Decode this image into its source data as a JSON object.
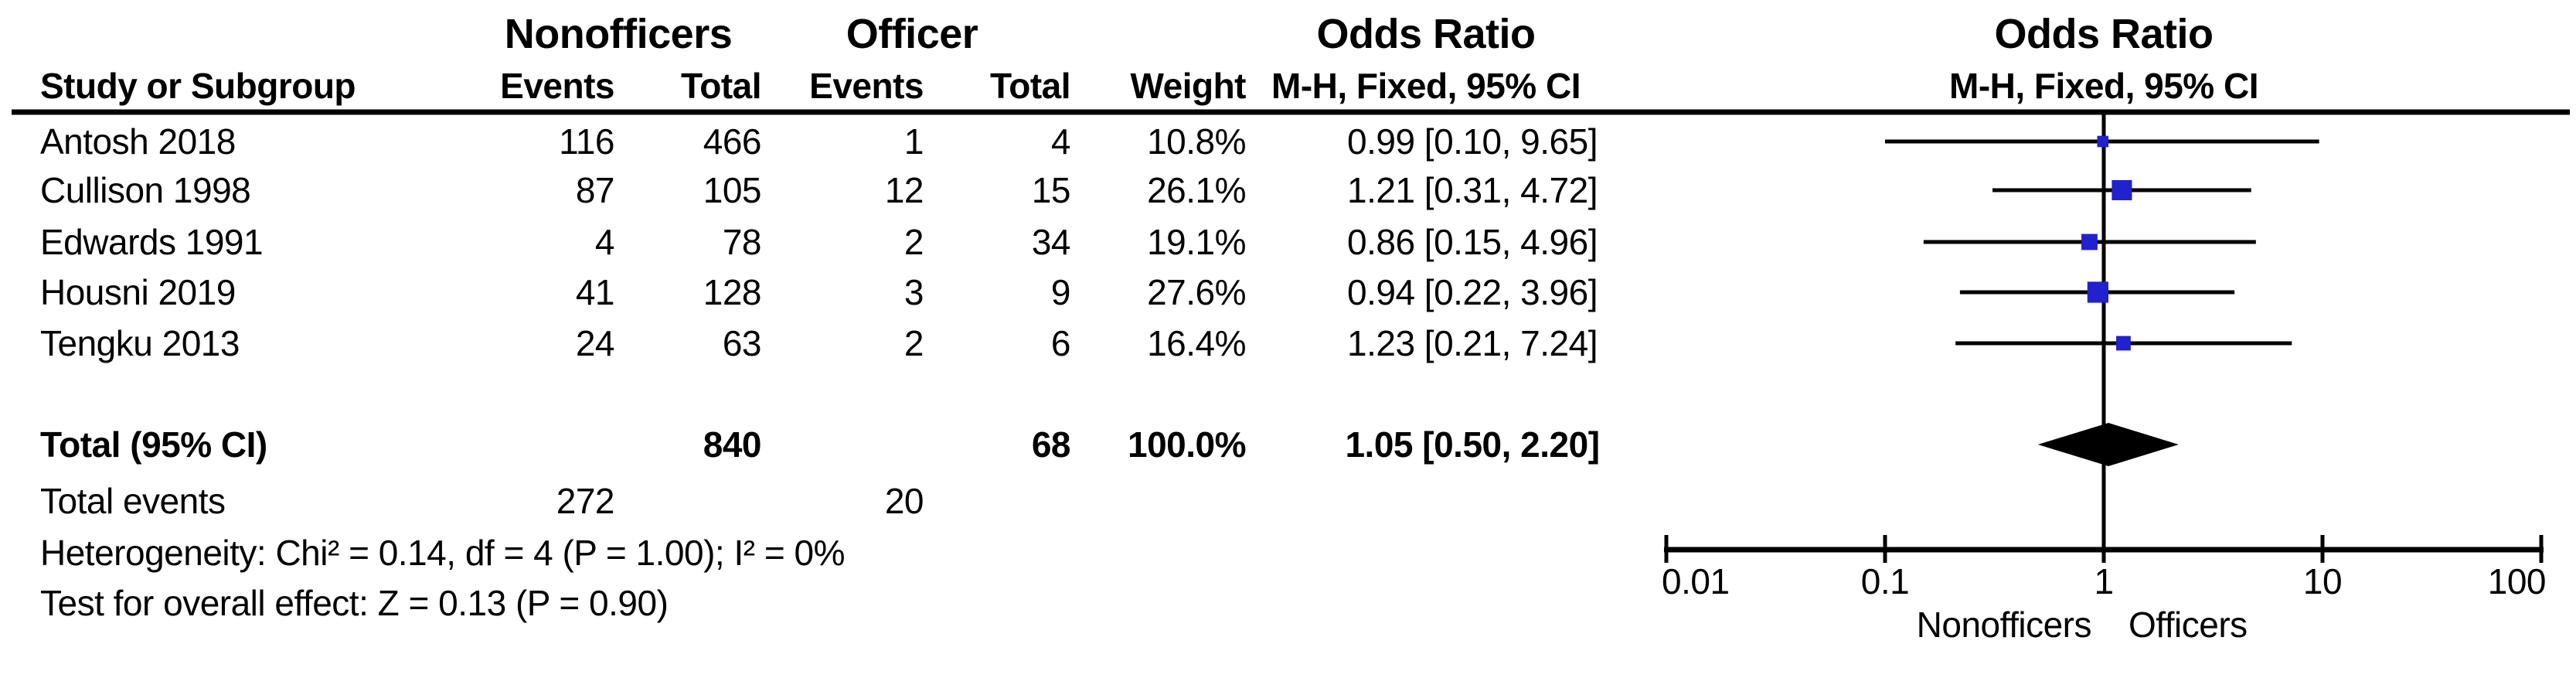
{
  "table": {
    "group1_header": "Nonofficers",
    "group2_header": "Officer",
    "or_col_header_line1": "Odds Ratio",
    "or_col_header_line2": "M-H, Fixed, 95% CI",
    "plot_header_line1": "Odds Ratio",
    "plot_header_line2": "M-H, Fixed, 95% CI",
    "col_headers": {
      "study": "Study or Subgroup",
      "events": "Events",
      "total": "Total",
      "weight": "Weight"
    },
    "rows": [
      {
        "study": "Antosh 2018",
        "e1": "116",
        "t1": "466",
        "e2": "1",
        "t2": "4",
        "weight": "10.8%",
        "or_ci": "0.99 [0.10, 9.65]"
      },
      {
        "study": "Cullison 1998",
        "e1": "87",
        "t1": "105",
        "e2": "12",
        "t2": "15",
        "weight": "26.1%",
        "or_ci": "1.21 [0.31, 4.72]"
      },
      {
        "study": "Edwards 1991",
        "e1": "4",
        "t1": "78",
        "e2": "2",
        "t2": "34",
        "weight": "19.1%",
        "or_ci": "0.86 [0.15, 4.96]"
      },
      {
        "study": "Housni 2019",
        "e1": "41",
        "t1": "128",
        "e2": "3",
        "t2": "9",
        "weight": "27.6%",
        "or_ci": "0.94 [0.22, 3.96]"
      },
      {
        "study": "Tengku 2013",
        "e1": "24",
        "t1": "63",
        "e2": "2",
        "t2": "6",
        "weight": "16.4%",
        "or_ci": "1.23 [0.21, 7.24]"
      }
    ],
    "total_row": {
      "label": "Total (95% CI)",
      "t1": "840",
      "t2": "68",
      "weight": "100.0%",
      "or_ci": "1.05 [0.50, 2.20]"
    },
    "total_events_row": {
      "label": "Total events",
      "e1": "272",
      "e2": "20"
    },
    "heterogeneity": "Heterogeneity: Chi² = 0.14, df = 4 (P = 1.00); I² = 0%",
    "overall_effect": "Test for overall effect: Z = 0.13 (P = 0.90)"
  },
  "chart_data": {
    "type": "forest",
    "effect_measure": "Odds Ratio, M-H, Fixed, 95% CI",
    "x_scale": "log10",
    "axis_range": [
      0.01,
      100
    ],
    "axis_ticks": [
      0.01,
      0.1,
      1,
      10,
      100
    ],
    "axis_tick_labels": [
      "0.01",
      "0.1",
      "1",
      "10",
      "100"
    ],
    "null_line": 1,
    "favours_left": "Nonofficers",
    "favours_right": "Officers",
    "studies": [
      {
        "name": "Antosh 2018",
        "or": 0.99,
        "ci_low": 0.1,
        "ci_high": 9.65,
        "weight_pct": 10.8
      },
      {
        "name": "Cullison 1998",
        "or": 1.21,
        "ci_low": 0.31,
        "ci_high": 4.72,
        "weight_pct": 26.1
      },
      {
        "name": "Edwards 1991",
        "or": 0.86,
        "ci_low": 0.15,
        "ci_high": 4.96,
        "weight_pct": 19.1
      },
      {
        "name": "Housni 2019",
        "or": 0.94,
        "ci_low": 0.22,
        "ci_high": 3.96,
        "weight_pct": 27.6
      },
      {
        "name": "Tengku 2013",
        "or": 1.23,
        "ci_low": 0.21,
        "ci_high": 7.24,
        "weight_pct": 16.4
      }
    ],
    "total": {
      "or": 1.05,
      "ci_low": 0.5,
      "ci_high": 2.2
    },
    "marker_color": "#2121CE",
    "line_color": "#000000"
  }
}
